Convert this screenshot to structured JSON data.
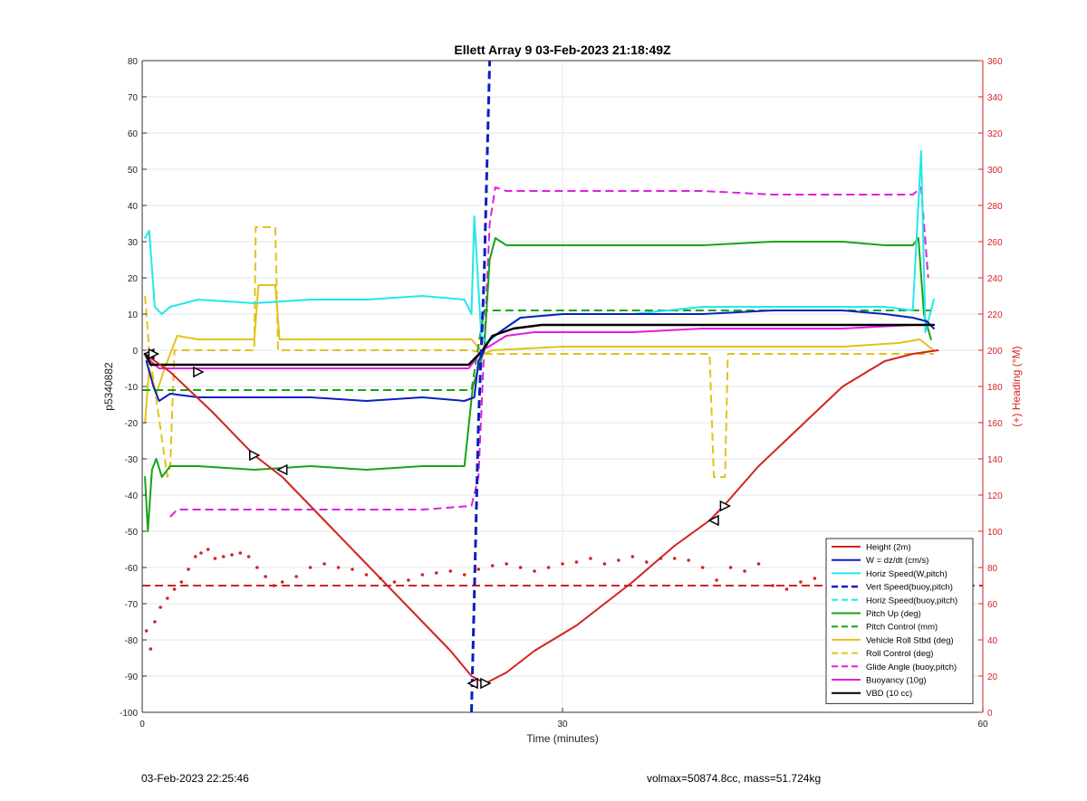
{
  "chart_data": {
    "type": "line",
    "title": "Ellett Array 9 03-Feb-2023 21:18:49Z",
    "xlabel": "Time (minutes)",
    "ylabel_left": "p5340882",
    "ylabel_right": "(+) Heading (°M)",
    "xlim": [
      0,
      60
    ],
    "ylim_left": [
      -100,
      80
    ],
    "ylim_right": [
      0,
      360
    ],
    "x_ticks": [
      0,
      30,
      60
    ],
    "y_ticks_left": [
      80,
      70,
      60,
      50,
      40,
      30,
      20,
      10,
      0,
      -10,
      -20,
      -30,
      -40,
      -50,
      -60,
      -70,
      -80,
      -90,
      -100
    ],
    "y_ticks_right": [
      360,
      340,
      320,
      300,
      280,
      260,
      240,
      220,
      200,
      180,
      160,
      140,
      120,
      100,
      80,
      60,
      40,
      20,
      0
    ],
    "grid": true,
    "legend_position": "bottom-right",
    "series": [
      {
        "name": "Height (2m)",
        "color": "#d32222",
        "style": "solid",
        "width": 2,
        "x": [
          0.2,
          2,
          5,
          8,
          10,
          13,
          16,
          19,
          22,
          23.5,
          24.5,
          26,
          28,
          31,
          35,
          38,
          40.5,
          41.5,
          44,
          47,
          50,
          53,
          55,
          56.8
        ],
        "y": [
          -1,
          -6,
          -17,
          -29,
          -35,
          -47,
          -59,
          -71,
          -83,
          -90,
          -92,
          -89,
          -83,
          -76,
          -64,
          -54,
          -47,
          -43,
          -32,
          -21,
          -10,
          -3,
          -1,
          0
        ]
      },
      {
        "name": "W = dz/dt (cm/s)",
        "color": "#0a1fbf",
        "style": "solid",
        "width": 2,
        "x": [
          0.3,
          0.8,
          1.2,
          2,
          4,
          8,
          12,
          16,
          20,
          23,
          23.7,
          24,
          24.4,
          24.8,
          25.5,
          27,
          30,
          35,
          40,
          45,
          50,
          53,
          55,
          56,
          56.5
        ],
        "y": [
          -3,
          -10,
          -14,
          -12,
          -13,
          -13,
          -13,
          -14,
          -13,
          -14,
          -13,
          -3,
          0,
          3,
          5,
          9,
          10,
          10,
          10,
          11,
          11,
          10,
          9,
          8,
          6
        ]
      },
      {
        "name": "Horiz Speed(W,pitch)",
        "color": "#22e8e8",
        "style": "solid",
        "width": 2,
        "x": [
          0.2,
          0.5,
          0.9,
          1.4,
          2,
          4,
          8,
          12,
          16,
          20,
          23,
          23.5,
          23.7,
          24.2,
          24.6,
          25.5,
          27,
          30,
          35,
          40,
          45,
          50,
          53,
          55,
          55.6,
          55.9,
          56.5
        ],
        "y": [
          31,
          33,
          12,
          10,
          12,
          14,
          13,
          14,
          14,
          15,
          14,
          10,
          37,
          4,
          2,
          5,
          9,
          10,
          10,
          12,
          12,
          12,
          12,
          11,
          55,
          5,
          14
        ]
      },
      {
        "name": "Vert Speed(buoy,pitch)",
        "color": "#0a1fbf",
        "style": "dashed",
        "width": 3,
        "x": [
          23.5,
          24.0,
          24.4,
          24.8
        ],
        "y": [
          -100,
          -20,
          20,
          80
        ]
      },
      {
        "name": "Horiz Speed(buoy,pitch)",
        "color": "#22e8e8",
        "style": "dashed",
        "width": 2,
        "x": [],
        "y": []
      },
      {
        "name": "Pitch Up (deg)",
        "color": "#18a318",
        "style": "solid",
        "width": 2,
        "x": [
          0.2,
          0.4,
          0.7,
          1.0,
          1.4,
          2,
          4,
          8,
          12,
          16,
          20,
          23,
          23.6,
          24.0,
          24.4,
          24.8,
          25.2,
          26,
          30,
          35,
          40,
          45,
          50,
          53,
          55,
          55.4,
          55.8,
          56.3
        ],
        "y": [
          -35,
          -50,
          -33,
          -30,
          -35,
          -32,
          -32,
          -33,
          -32,
          -33,
          -32,
          -32,
          -10,
          -5,
          0,
          25,
          31,
          29,
          29,
          29,
          29,
          30,
          30,
          29,
          29,
          31,
          10,
          3
        ]
      },
      {
        "name": "Pitch Control (mm)",
        "color": "#18a318",
        "style": "dashed",
        "width": 2,
        "x": [
          0,
          23.5,
          24.4,
          56.5
        ],
        "y": [
          -11,
          -11,
          11,
          11
        ]
      },
      {
        "name": "Vehicle Roll Stbd (deg)",
        "color": "#e2c21a",
        "style": "solid",
        "width": 2,
        "x": [
          0.2,
          0.5,
          1.0,
          1.6,
          2.5,
          4,
          7,
          8,
          8.3,
          9.5,
          9.8,
          12,
          16,
          20,
          23.5,
          24.4,
          25,
          30,
          35,
          40,
          45,
          50,
          54,
          55.5,
          56.5
        ],
        "y": [
          -20,
          -5,
          -12,
          -5,
          4,
          3,
          3,
          3,
          18,
          18,
          3,
          3,
          3,
          3,
          3,
          -1,
          0,
          1,
          1,
          1,
          1,
          1,
          2,
          3,
          0
        ]
      },
      {
        "name": "Roll Control (deg)",
        "color": "#e2c21a",
        "style": "dashed",
        "width": 2,
        "x": [
          0.2,
          0.5,
          1.8,
          2.0,
          2.3,
          8.0,
          8.1,
          9.5,
          9.7,
          23.5,
          24.4,
          40.5,
          40.8,
          41.6,
          41.8,
          56.5
        ],
        "y": [
          15,
          0,
          -35,
          -32,
          0,
          0,
          34,
          34,
          0,
          0,
          -1,
          -1,
          -35,
          -35,
          -1,
          -1
        ]
      },
      {
        "name": "Glide Angle (buoy,pitch)",
        "color": "#e01ee0",
        "style": "dashed",
        "width": 2,
        "x": [
          2.0,
          2.5,
          5,
          8,
          12,
          16,
          20,
          23.5,
          24,
          24.8,
          25.2,
          26,
          30,
          35,
          40,
          45,
          50,
          53,
          55,
          55.6,
          56.1
        ],
        "y": [
          -46,
          -44,
          -44,
          -44,
          -44,
          -44,
          -44,
          -43,
          -35,
          35,
          45,
          44,
          44,
          44,
          44,
          43,
          43,
          43,
          43,
          45,
          20
        ]
      },
      {
        "name": "Buoyancy (10g)",
        "color": "#e01ee0",
        "style": "solid",
        "width": 2,
        "x": [
          0.2,
          0.6,
          1.2,
          23.3,
          24.3,
          26,
          28,
          35,
          40,
          45,
          50,
          55,
          56.5
        ],
        "y": [
          -1,
          -3,
          -5,
          -5,
          0,
          4,
          5,
          5,
          6,
          6,
          6,
          7,
          7
        ]
      },
      {
        "name": "VBD (10 cc)",
        "color": "#000000",
        "style": "solid",
        "width": 2.5,
        "x": [
          0.2,
          0.6,
          1.2,
          23.3,
          24.3,
          25,
          26.5,
          28.5,
          32,
          36,
          40,
          45,
          50,
          55,
          56.5
        ],
        "y": [
          -1,
          -4,
          -4,
          -4,
          0,
          4,
          6,
          7,
          7,
          7,
          7,
          7,
          7,
          7,
          7
        ]
      }
    ],
    "heading_series": {
      "name": "Heading",
      "color": "#d32222",
      "style": "dotted",
      "axis": "right",
      "x": [
        0.3,
        0.6,
        0.9,
        1.3,
        1.8,
        2.3,
        2.8,
        3.3,
        3.8,
        4.2,
        4.7,
        5.2,
        5.8,
        6.4,
        7.0,
        7.6,
        8.2,
        8.8,
        9.4,
        10,
        11,
        12,
        13,
        14,
        15,
        16,
        17,
        18,
        19,
        20,
        21,
        22,
        23,
        24,
        25,
        26,
        27,
        28,
        29,
        30,
        31,
        32,
        33,
        34,
        35,
        36,
        37,
        38,
        39,
        40,
        41,
        42,
        43,
        44,
        45,
        46,
        47,
        48,
        49,
        50,
        51,
        52,
        53,
        54,
        55
      ],
      "y": [
        45,
        35,
        50,
        58,
        63,
        68,
        72,
        79,
        86,
        88,
        90,
        85,
        86,
        87,
        88,
        86,
        80,
        75,
        70,
        72,
        75,
        80,
        82,
        80,
        79,
        76,
        74,
        72,
        73,
        76,
        77,
        78,
        76,
        79,
        81,
        82,
        80,
        78,
        80,
        82,
        83,
        85,
        82,
        84,
        86,
        83,
        85,
        85,
        84,
        80,
        73,
        80,
        78,
        82,
        70,
        68,
        72,
        74,
        70,
        65,
        68,
        64,
        60,
        50,
        38
      ]
    },
    "heading_reference": {
      "color": "#d32222",
      "style": "dashed",
      "value": -65,
      "axis": "left"
    },
    "markers": [
      {
        "series": "Height (2m)",
        "x": 0.5,
        "y": -1,
        "dir": "left"
      },
      {
        "series": "Height (2m)",
        "x": 0.8,
        "y": -1,
        "dir": "right"
      },
      {
        "series": "Height (2m)",
        "x": 4.0,
        "y": -6,
        "dir": "right"
      },
      {
        "series": "Height (2m)",
        "x": 8.0,
        "y": -29,
        "dir": "right"
      },
      {
        "series": "Height (2m)",
        "x": 10.0,
        "y": -33,
        "dir": "left"
      },
      {
        "series": "Height (2m)",
        "x": 23.6,
        "y": -92,
        "dir": "left"
      },
      {
        "series": "Height (2m)",
        "x": 24.5,
        "y": -92,
        "dir": "right"
      },
      {
        "series": "Height (2m)",
        "x": 40.8,
        "y": -47,
        "dir": "left"
      },
      {
        "series": "Height (2m)",
        "x": 41.6,
        "y": -43,
        "dir": "right"
      }
    ]
  },
  "footer": {
    "left": "03-Feb-2023 22:25:46",
    "right": "volmax=50874.8cc, mass=51.724kg"
  }
}
